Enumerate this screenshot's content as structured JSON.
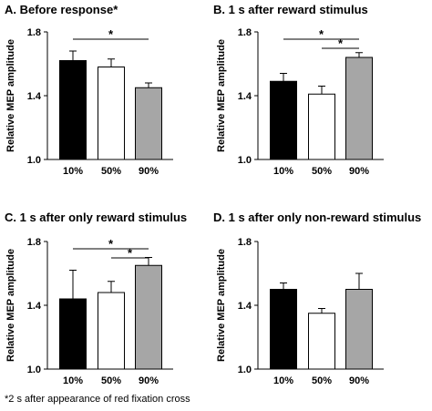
{
  "figure": {
    "footnote": "*2 s after appearance of red fixation cross"
  },
  "chart_data": [
    {
      "type": "bar",
      "title": "A. Before response*",
      "ylabel": "Relative MEP amplitude",
      "xlabel": "",
      "categories": [
        "10%",
        "50%",
        "90%"
      ],
      "values": [
        1.62,
        1.58,
        1.45
      ],
      "errors": [
        0.06,
        0.05,
        0.03
      ],
      "bar_colors": [
        "#000000",
        "#ffffff",
        "#a6a6a6"
      ],
      "ylim": [
        1.0,
        1.8
      ],
      "yticks": [
        "1.0",
        "1.4",
        "1.8"
      ],
      "grid": false,
      "significance": [
        {
          "from": 0,
          "to": 2,
          "label": "*"
        }
      ]
    },
    {
      "type": "bar",
      "title": "B. 1 s after reward stimulus",
      "ylabel": "Relative MEP amplitude",
      "xlabel": "",
      "categories": [
        "10%",
        "50%",
        "90%"
      ],
      "values": [
        1.49,
        1.41,
        1.64
      ],
      "errors": [
        0.05,
        0.05,
        0.03
      ],
      "bar_colors": [
        "#000000",
        "#ffffff",
        "#a6a6a6"
      ],
      "ylim": [
        1.0,
        1.8
      ],
      "yticks": [
        "1.0",
        "1.4",
        "1.8"
      ],
      "grid": false,
      "significance": [
        {
          "from": 0,
          "to": 2,
          "label": "*"
        },
        {
          "from": 1,
          "to": 2,
          "label": "*"
        }
      ]
    },
    {
      "type": "bar",
      "title": "C. 1 s after only reward stimulus",
      "ylabel": "Relative MEP amplitude",
      "xlabel": "",
      "categories": [
        "10%",
        "50%",
        "90%"
      ],
      "values": [
        1.44,
        1.48,
        1.65
      ],
      "errors": [
        0.18,
        0.07,
        0.05
      ],
      "bar_colors": [
        "#000000",
        "#ffffff",
        "#a6a6a6"
      ],
      "ylim": [
        1.0,
        1.8
      ],
      "yticks": [
        "1.0",
        "1.4",
        "1.8"
      ],
      "grid": false,
      "significance": [
        {
          "from": 0,
          "to": 2,
          "label": "*"
        },
        {
          "from": 1,
          "to": 2,
          "label": "*"
        }
      ]
    },
    {
      "type": "bar",
      "title": "D. 1 s after only non-reward stimulus",
      "ylabel": "Relative MEP amplitude",
      "xlabel": "",
      "categories": [
        "10%",
        "50%",
        "90%"
      ],
      "values": [
        1.5,
        1.35,
        1.5
      ],
      "errors": [
        0.04,
        0.03,
        0.1
      ],
      "bar_colors": [
        "#000000",
        "#ffffff",
        "#a6a6a6"
      ],
      "ylim": [
        1.0,
        1.8
      ],
      "yticks": [
        "1.0",
        "1.4",
        "1.8"
      ],
      "grid": false,
      "significance": []
    }
  ]
}
